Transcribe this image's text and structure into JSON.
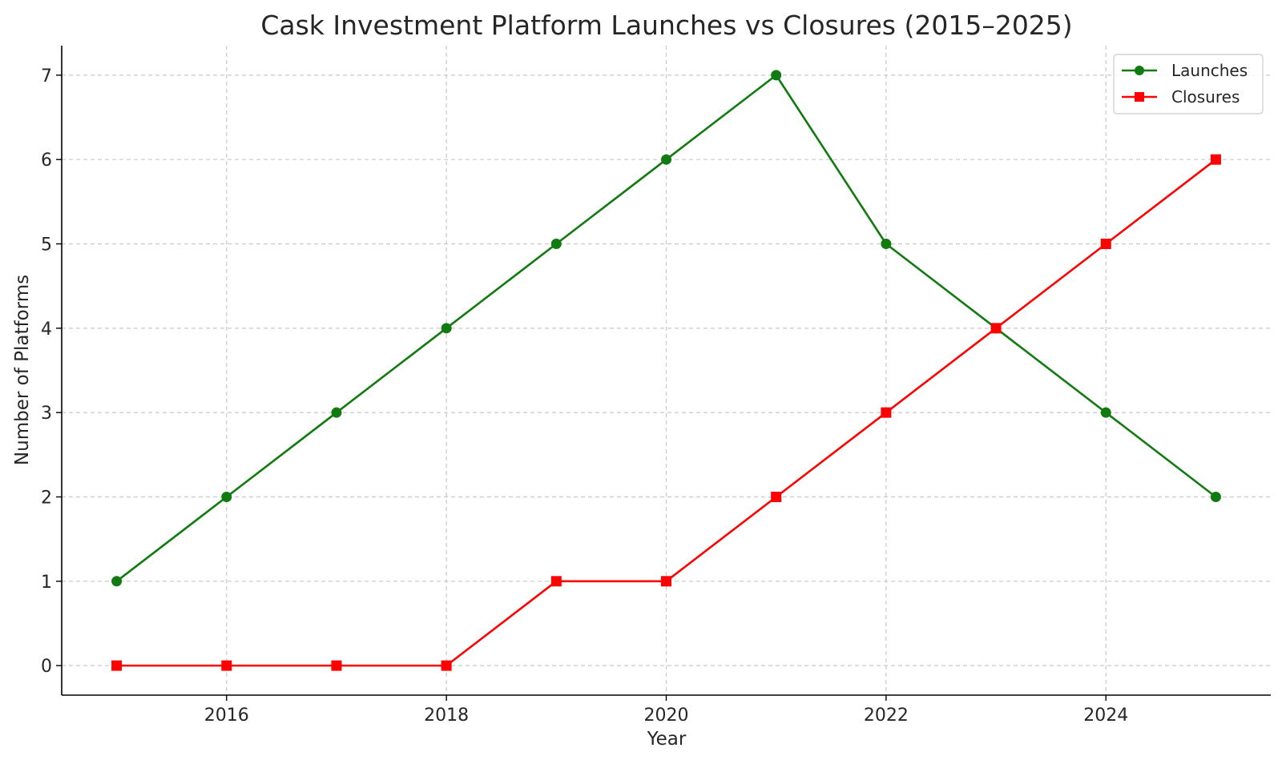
{
  "chart_data": {
    "type": "line",
    "title": "Cask Investment Platform Launches vs Closures (2015–2025)",
    "xlabel": "Year",
    "ylabel": "Number of Platforms",
    "x": [
      2015,
      2016,
      2017,
      2018,
      2019,
      2020,
      2021,
      2022,
      2023,
      2024,
      2025
    ],
    "xlim": [
      2014.5,
      2025.5
    ],
    "ylim": [
      -0.35,
      7.35
    ],
    "x_ticks": [
      2016,
      2018,
      2020,
      2022,
      2024
    ],
    "x_tick_labels": [
      "2016",
      "2018",
      "2020",
      "2022",
      "2024"
    ],
    "y_ticks": [
      0,
      1,
      2,
      3,
      4,
      5,
      6,
      7
    ],
    "y_tick_labels": [
      "0",
      "1",
      "2",
      "3",
      "4",
      "5",
      "6",
      "7"
    ],
    "grid": true,
    "legend_position": "top-right",
    "series": [
      {
        "name": "Launches",
        "values": [
          1,
          2,
          3,
          4,
          5,
          6,
          7,
          5,
          4,
          3,
          2
        ],
        "color": "#117a11",
        "marker": "circle"
      },
      {
        "name": "Closures",
        "values": [
          0,
          0,
          0,
          0,
          1,
          1,
          2,
          3,
          4,
          5,
          6
        ],
        "color": "#ff0000",
        "marker": "square"
      }
    ]
  }
}
